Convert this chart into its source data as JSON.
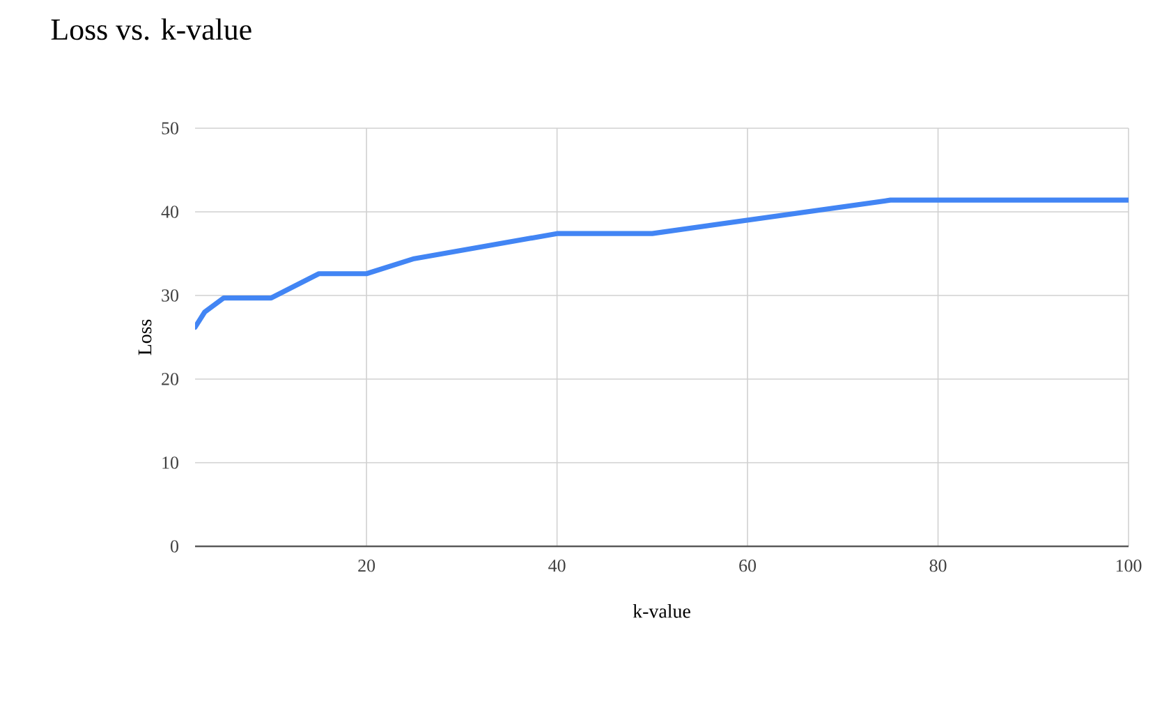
{
  "chart_data": {
    "type": "line",
    "title": "Loss vs. k-value",
    "xlabel": "k-value",
    "ylabel": "Loss",
    "x": [
      2,
      3,
      5,
      10,
      15,
      20,
      25,
      40,
      50,
      75,
      100
    ],
    "series": [
      {
        "color": "#4285f4",
        "values": [
          26.2,
          28.0,
          29.7,
          29.7,
          32.6,
          32.6,
          34.4,
          37.4,
          37.4,
          41.4,
          41.4
        ]
      }
    ],
    "xlim": [
      2,
      100
    ],
    "ylim": [
      0,
      50
    ],
    "xticks": [
      20,
      40,
      60,
      80,
      100
    ],
    "yticks": [
      0,
      10,
      20,
      30,
      40,
      50
    ],
    "grid": true,
    "legend": false,
    "marker": "none",
    "line_style": "solid"
  }
}
